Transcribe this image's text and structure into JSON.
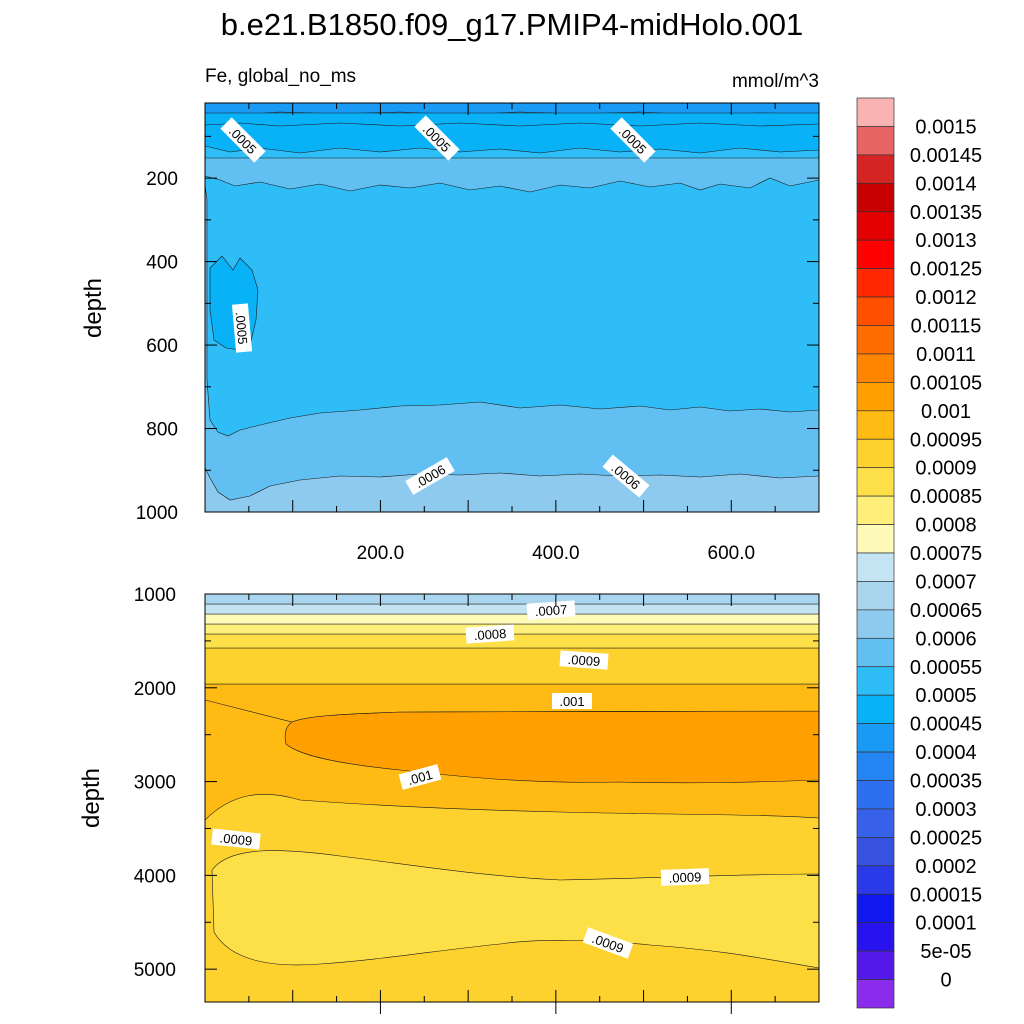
{
  "title": "b.e21.B1850.f09_g17.PMIP4-midHolo.001",
  "chart_data": {
    "type": "contour",
    "variable_label": "Fe, global_no_ms",
    "units": "mmol/m^3",
    "colorbar": {
      "levels": [
        "0.0015",
        "0.00145",
        "0.0014",
        "0.00135",
        "0.0013",
        "0.00125",
        "0.0012",
        "0.00115",
        "0.0011",
        "0.00105",
        "0.001",
        "0.00095",
        "0.0009",
        "0.00085",
        "0.0008",
        "0.00075",
        "0.0007",
        "0.00065",
        "0.0006",
        "0.00055",
        "0.0005",
        "0.00045",
        "0.0004",
        "0.00035",
        "0.0003",
        "0.00025",
        "0.0002",
        "0.00015",
        "0.0001",
        "5e-05",
        "0"
      ],
      "colors": [
        "#f9b3b3",
        "#e86565",
        "#d42424",
        "#c80000",
        "#e20000",
        "#ff0000",
        "#ff2800",
        "#ff5000",
        "#ff6c00",
        "#ff8500",
        "#ffa000",
        "#ffba14",
        "#fdd12e",
        "#fde048",
        "#fdef7a",
        "#fefbb8",
        "#c4e4f3",
        "#a9d6ee",
        "#8ecaed",
        "#62bff2",
        "#2ebdf7",
        "#09b2f7",
        "#199bf5",
        "#2484f2",
        "#2e6ff0",
        "#3761e8",
        "#3752e0",
        "#2a3ae8",
        "#1018ef",
        "#2812ee",
        "#5418e9",
        "#8a2cec"
      ]
    },
    "top_panel": {
      "ylabel": "depth",
      "yticks": [
        "200",
        "400",
        "600",
        "800",
        "1000"
      ],
      "xticks": [
        "200.0",
        "400.0",
        "600.0"
      ],
      "ylim": [
        20,
        1000
      ],
      "xlim": [
        0,
        700
      ],
      "contour_labels": [
        ".0005",
        ".0005",
        ".0005",
        ".0005",
        ".0006",
        ".0006"
      ]
    },
    "bottom_panel": {
      "ylabel": "depth",
      "yticks": [
        "1000",
        "2000",
        "3000",
        "4000",
        "5000"
      ],
      "ylim": [
        1000,
        5350
      ],
      "xlim": [
        0,
        700
      ],
      "contour_labels": [
        ".0007",
        ".0008",
        ".0009",
        ".001",
        ".001",
        ".0009",
        ".0009",
        ".0009"
      ]
    }
  }
}
